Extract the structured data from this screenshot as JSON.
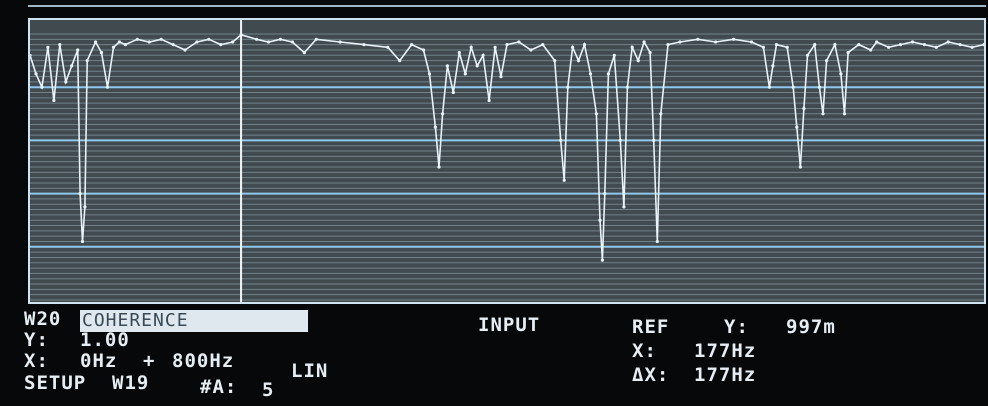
{
  "window": {
    "id": "W20",
    "measurement": "COHERENCE",
    "source": "INPUT"
  },
  "y_scale": {
    "label": "Y:",
    "value": "1.00"
  },
  "x_scale": {
    "label": "X:",
    "start": "0Hz",
    "plus": "+",
    "span": "800Hz",
    "mode": "LIN"
  },
  "setup": {
    "label": "SETUP",
    "window": "W19",
    "avg_label": "#A:",
    "avg_count": "5"
  },
  "marker": {
    "label": "REF",
    "y_label": "Y:",
    "y_value": "997m",
    "x_label": "X:",
    "x_value": "177Hz",
    "dx_label": "ΔX:",
    "dx_value": "177Hz"
  },
  "colors": {
    "trace": "#e8f2f8",
    "major_grid": "#8fc8ee",
    "minor_grid": "#7f8f98",
    "text": "#e6eef4",
    "highlight_bg": "#dfe8ee"
  },
  "chart_data": {
    "type": "line",
    "x_range": [
      0,
      800
    ],
    "ylim": [
      0,
      1
    ],
    "grid": true,
    "cursor_x": 177,
    "points": [
      [
        0,
        0.92
      ],
      [
        5,
        0.85
      ],
      [
        10,
        0.8
      ],
      [
        15,
        0.95
      ],
      [
        20,
        0.75
      ],
      [
        25,
        0.96
      ],
      [
        30,
        0.82
      ],
      [
        35,
        0.88
      ],
      [
        40,
        0.94
      ],
      [
        42,
        0.4
      ],
      [
        44,
        0.22
      ],
      [
        46,
        0.35
      ],
      [
        48,
        0.9
      ],
      [
        55,
        0.97
      ],
      [
        60,
        0.93
      ],
      [
        65,
        0.8
      ],
      [
        70,
        0.95
      ],
      [
        75,
        0.97
      ],
      [
        80,
        0.96
      ],
      [
        90,
        0.98
      ],
      [
        100,
        0.97
      ],
      [
        110,
        0.98
      ],
      [
        120,
        0.96
      ],
      [
        130,
        0.94
      ],
      [
        140,
        0.97
      ],
      [
        150,
        0.98
      ],
      [
        160,
        0.96
      ],
      [
        170,
        0.97
      ],
      [
        177,
        0.997
      ],
      [
        190,
        0.98
      ],
      [
        200,
        0.97
      ],
      [
        210,
        0.98
      ],
      [
        220,
        0.97
      ],
      [
        230,
        0.93
      ],
      [
        240,
        0.98
      ],
      [
        260,
        0.97
      ],
      [
        280,
        0.96
      ],
      [
        300,
        0.95
      ],
      [
        310,
        0.9
      ],
      [
        320,
        0.96
      ],
      [
        330,
        0.94
      ],
      [
        335,
        0.85
      ],
      [
        340,
        0.65
      ],
      [
        343,
        0.5
      ],
      [
        346,
        0.7
      ],
      [
        350,
        0.88
      ],
      [
        355,
        0.78
      ],
      [
        360,
        0.93
      ],
      [
        365,
        0.85
      ],
      [
        370,
        0.95
      ],
      [
        375,
        0.88
      ],
      [
        380,
        0.92
      ],
      [
        385,
        0.75
      ],
      [
        390,
        0.95
      ],
      [
        395,
        0.84
      ],
      [
        400,
        0.96
      ],
      [
        410,
        0.97
      ],
      [
        420,
        0.94
      ],
      [
        430,
        0.96
      ],
      [
        440,
        0.9
      ],
      [
        445,
        0.6
      ],
      [
        448,
        0.45
      ],
      [
        451,
        0.8
      ],
      [
        455,
        0.95
      ],
      [
        460,
        0.9
      ],
      [
        465,
        0.96
      ],
      [
        470,
        0.85
      ],
      [
        475,
        0.7
      ],
      [
        478,
        0.3
      ],
      [
        480,
        0.15
      ],
      [
        482,
        0.4
      ],
      [
        485,
        0.85
      ],
      [
        490,
        0.92
      ],
      [
        495,
        0.6
      ],
      [
        498,
        0.35
      ],
      [
        501,
        0.8
      ],
      [
        505,
        0.95
      ],
      [
        510,
        0.9
      ],
      [
        515,
        0.97
      ],
      [
        520,
        0.93
      ],
      [
        523,
        0.6
      ],
      [
        526,
        0.22
      ],
      [
        529,
        0.7
      ],
      [
        535,
        0.96
      ],
      [
        545,
        0.97
      ],
      [
        560,
        0.98
      ],
      [
        575,
        0.97
      ],
      [
        590,
        0.98
      ],
      [
        605,
        0.97
      ],
      [
        615,
        0.95
      ],
      [
        620,
        0.8
      ],
      [
        623,
        0.88
      ],
      [
        626,
        0.96
      ],
      [
        635,
        0.95
      ],
      [
        640,
        0.8
      ],
      [
        643,
        0.65
      ],
      [
        646,
        0.5
      ],
      [
        649,
        0.72
      ],
      [
        652,
        0.92
      ],
      [
        658,
        0.96
      ],
      [
        662,
        0.8
      ],
      [
        665,
        0.7
      ],
      [
        668,
        0.9
      ],
      [
        675,
        0.96
      ],
      [
        680,
        0.85
      ],
      [
        683,
        0.7
      ],
      [
        686,
        0.93
      ],
      [
        695,
        0.96
      ],
      [
        705,
        0.94
      ],
      [
        710,
        0.97
      ],
      [
        720,
        0.95
      ],
      [
        730,
        0.96
      ],
      [
        740,
        0.97
      ],
      [
        750,
        0.96
      ],
      [
        760,
        0.95
      ],
      [
        770,
        0.97
      ],
      [
        780,
        0.96
      ],
      [
        790,
        0.95
      ],
      [
        800,
        0.96
      ]
    ]
  }
}
